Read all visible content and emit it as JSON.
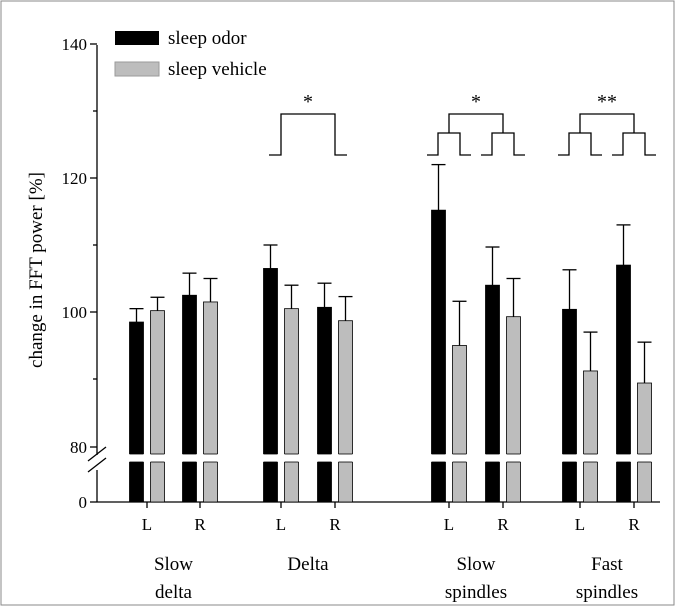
{
  "chart_data": {
    "type": "bar",
    "ylabel": "change in FFT power [%]",
    "y_ticks": [
      0,
      80,
      100,
      120,
      140
    ],
    "ylim": [
      80,
      140
    ],
    "axis_break": true,
    "legend_placement": "top-left",
    "series": [
      {
        "name": "sleep odor",
        "color": "#000000"
      },
      {
        "name": "sleep vehicle",
        "color": "#bdbdbd"
      }
    ],
    "groups": [
      {
        "label_line1": "Slow",
        "label_line2": "delta",
        "sides": [
          {
            "label": "L",
            "values": [
              98.5,
              100.2
            ],
            "errors": [
              2.0,
              2.0
            ]
          },
          {
            "label": "R",
            "values": [
              102.5,
              101.5
            ],
            "errors": [
              3.3,
              3.5
            ]
          }
        ]
      },
      {
        "label_line1": "Delta",
        "label_line2": "",
        "sides": [
          {
            "label": "L",
            "values": [
              106.5,
              100.5
            ],
            "errors": [
              3.5,
              3.5
            ]
          },
          {
            "label": "R",
            "values": [
              100.7,
              98.7
            ],
            "errors": [
              3.6,
              3.6
            ]
          }
        ]
      },
      {
        "label_line1": "Slow",
        "label_line2": "spindles",
        "sides": [
          {
            "label": "L",
            "values": [
              115.2,
              95.0
            ],
            "errors": [
              6.8,
              6.6
            ]
          },
          {
            "label": "R",
            "values": [
              104.0,
              99.3
            ],
            "errors": [
              5.7,
              5.7
            ]
          }
        ]
      },
      {
        "label_line1": "Fast",
        "label_line2": "spindles",
        "sides": [
          {
            "label": "L",
            "values": [
              100.4,
              91.2
            ],
            "errors": [
              5.9,
              5.8
            ]
          },
          {
            "label": "R",
            "values": [
              107.0,
              89.4
            ],
            "errors": [
              6.0,
              6.1
            ]
          }
        ]
      }
    ],
    "significance": [
      {
        "group": 1,
        "label": "*",
        "style": "single"
      },
      {
        "group": 2,
        "label": "*",
        "style": "pair"
      },
      {
        "group": 3,
        "label": "**",
        "style": "pair"
      }
    ]
  }
}
